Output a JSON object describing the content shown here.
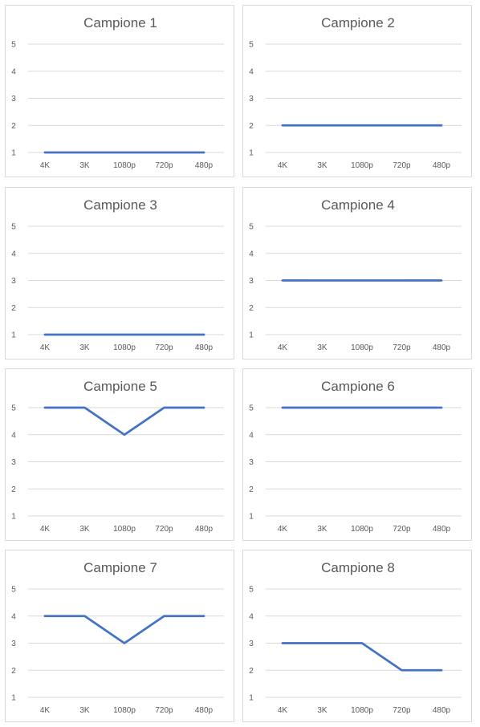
{
  "chart_data": [
    {
      "type": "line",
      "title": "Campione 1",
      "categories": [
        "4K",
        "3K",
        "1080p",
        "720p",
        "480p"
      ],
      "values": [
        1,
        1,
        1,
        1,
        1
      ],
      "y_ticks": [
        "1",
        "2",
        "3",
        "4",
        "5"
      ],
      "ylim": [
        1,
        5
      ],
      "grid": true,
      "line_color": "#4472c4"
    },
    {
      "type": "line",
      "title": "Campione 2",
      "categories": [
        "4K",
        "3K",
        "1080p",
        "720p",
        "480p"
      ],
      "values": [
        2,
        2,
        2,
        2,
        2
      ],
      "y_ticks": [
        "1",
        "2",
        "3",
        "4",
        "5"
      ],
      "ylim": [
        1,
        5
      ],
      "grid": true,
      "line_color": "#4472c4"
    },
    {
      "type": "line",
      "title": "Campione 3",
      "categories": [
        "4K",
        "3K",
        "1080p",
        "720p",
        "480p"
      ],
      "values": [
        1,
        1,
        1,
        1,
        1
      ],
      "y_ticks": [
        "1",
        "2",
        "3",
        "4",
        "5"
      ],
      "ylim": [
        1,
        5
      ],
      "grid": true,
      "line_color": "#4472c4"
    },
    {
      "type": "line",
      "title": "Campione 4",
      "categories": [
        "4K",
        "3K",
        "1080p",
        "720p",
        "480p"
      ],
      "values": [
        3,
        3,
        3,
        3,
        3
      ],
      "y_ticks": [
        "1",
        "2",
        "3",
        "4",
        "5"
      ],
      "ylim": [
        1,
        5
      ],
      "grid": true,
      "line_color": "#4472c4"
    },
    {
      "type": "line",
      "title": "Campione 5",
      "categories": [
        "4K",
        "3K",
        "1080p",
        "720p",
        "480p"
      ],
      "values": [
        5,
        5,
        4,
        5,
        5
      ],
      "y_ticks": [
        "1",
        "2",
        "3",
        "4",
        "5"
      ],
      "ylim": [
        1,
        5
      ],
      "grid": true,
      "line_color": "#4472c4"
    },
    {
      "type": "line",
      "title": "Campione 6",
      "categories": [
        "4K",
        "3K",
        "1080p",
        "720p",
        "480p"
      ],
      "values": [
        5,
        5,
        5,
        5,
        5
      ],
      "y_ticks": [
        "1",
        "2",
        "3",
        "4",
        "5"
      ],
      "ylim": [
        1,
        5
      ],
      "grid": true,
      "line_color": "#4472c4"
    },
    {
      "type": "line",
      "title": "Campione 7",
      "categories": [
        "4K",
        "3K",
        "1080p",
        "720p",
        "480p"
      ],
      "values": [
        4,
        4,
        3,
        4,
        4
      ],
      "y_ticks": [
        "1",
        "2",
        "3",
        "4",
        "5"
      ],
      "ylim": [
        1,
        5
      ],
      "grid": true,
      "line_color": "#4472c4"
    },
    {
      "type": "line",
      "title": "Campione 8",
      "categories": [
        "4K",
        "3K",
        "1080p",
        "720p",
        "480p"
      ],
      "values": [
        3,
        3,
        3,
        2,
        2
      ],
      "y_ticks": [
        "1",
        "2",
        "3",
        "4",
        "5"
      ],
      "ylim": [
        1,
        5
      ],
      "grid": true,
      "line_color": "#4472c4"
    }
  ]
}
